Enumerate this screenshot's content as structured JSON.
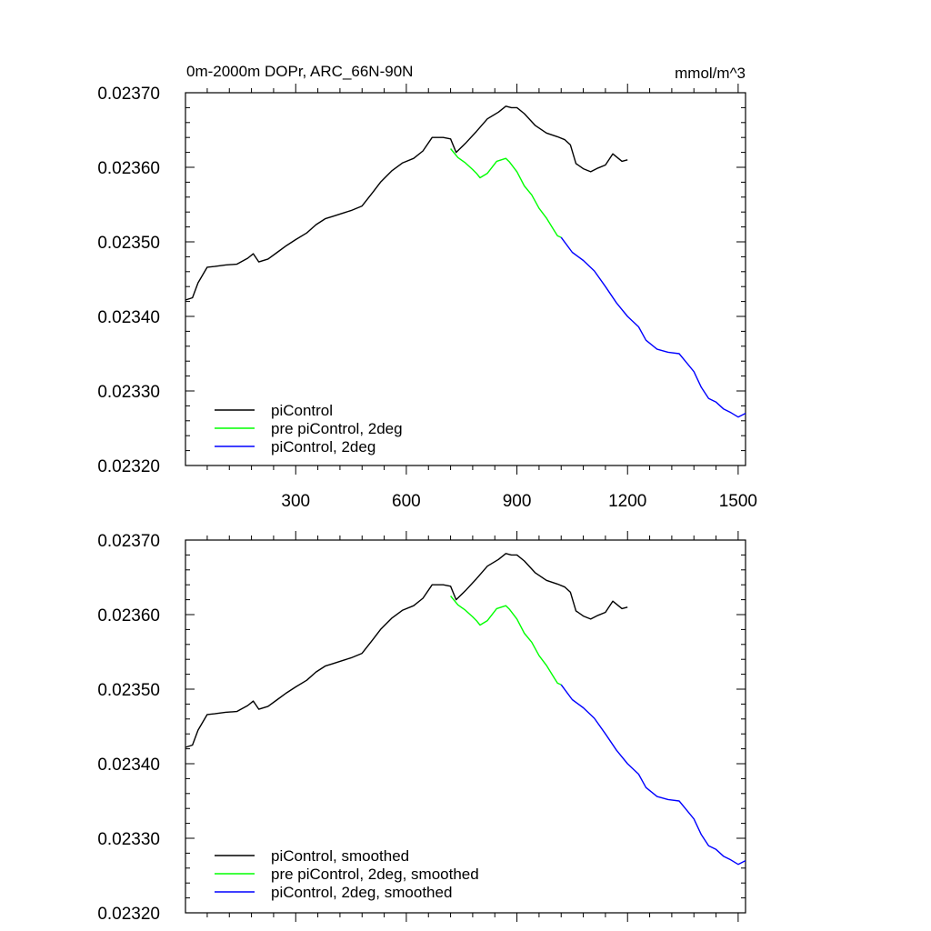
{
  "chart_data": [
    {
      "type": "line",
      "title_left": "0m-2000m DOPr, ARC_66N-90N",
      "title_right": "mmol/m^3",
      "xlim": [
        1,
        1520
      ],
      "ylim": [
        0.0232,
        0.0237
      ],
      "ytick_values": [
        0.0232,
        0.0233,
        0.0234,
        0.0235,
        0.0236,
        0.0237
      ],
      "ytick_labels": [
        "0.02320",
        "0.02330",
        "0.02340",
        "0.02350",
        "0.02360",
        "0.02370"
      ],
      "xtick_values": [
        300,
        600,
        900,
        1200,
        1500
      ],
      "xtick_labels": [
        "300",
        "600",
        "900",
        "1200",
        "1500"
      ],
      "legend_position": "bottom-left",
      "series": [
        {
          "name": "piControl",
          "color": "#000000",
          "x": [
            1,
            20,
            35,
            60,
            80,
            110,
            140,
            170,
            185,
            200,
            225,
            250,
            275,
            300,
            330,
            355,
            380,
            400,
            425,
            450,
            480,
            510,
            530,
            560,
            590,
            620,
            645,
            670,
            700,
            720,
            735,
            760,
            790,
            820,
            850,
            870,
            885,
            900,
            920,
            950,
            980,
            1010,
            1030,
            1045,
            1060,
            1080,
            1100,
            1120,
            1140,
            1160,
            1185,
            1200
          ],
          "y": [
            0.023422,
            0.023425,
            0.023445,
            0.023466,
            0.023467,
            0.023469,
            0.02347,
            0.023478,
            0.023484,
            0.023473,
            0.023477,
            0.023486,
            0.023495,
            0.023503,
            0.023512,
            0.023523,
            0.023531,
            0.023534,
            0.023538,
            0.023542,
            0.023548,
            0.023567,
            0.02358,
            0.023595,
            0.023606,
            0.023612,
            0.023622,
            0.02364,
            0.02364,
            0.023638,
            0.02362,
            0.023632,
            0.023648,
            0.023665,
            0.023674,
            0.023682,
            0.02368,
            0.02368,
            0.023672,
            0.023656,
            0.023646,
            0.023641,
            0.023637,
            0.02363,
            0.023605,
            0.023598,
            0.023594,
            0.023599,
            0.023603,
            0.023618,
            0.023608,
            0.02361
          ]
        },
        {
          "name": "pre piControl, 2deg",
          "color": "#00ff00",
          "x": [
            720,
            740,
            760,
            780,
            790,
            800,
            820,
            845,
            870,
            880,
            900,
            920,
            940,
            960,
            980,
            1000,
            1010,
            1020
          ],
          "y": [
            0.023625,
            0.023613,
            0.023606,
            0.023597,
            0.023592,
            0.023586,
            0.023592,
            0.023608,
            0.023612,
            0.023607,
            0.023594,
            0.023575,
            0.023563,
            0.023545,
            0.023532,
            0.023516,
            0.023508,
            0.023506
          ]
        },
        {
          "name": "piControl, 2deg",
          "color": "#0000ff",
          "x": [
            1020,
            1050,
            1080,
            1110,
            1140,
            1170,
            1200,
            1230,
            1250,
            1280,
            1310,
            1340,
            1360,
            1380,
            1400,
            1420,
            1440,
            1460,
            1480,
            1500,
            1520
          ],
          "y": [
            0.023506,
            0.023486,
            0.023475,
            0.023461,
            0.02344,
            0.023418,
            0.0234,
            0.023386,
            0.023368,
            0.023356,
            0.023352,
            0.02335,
            0.023338,
            0.023326,
            0.023305,
            0.02329,
            0.023285,
            0.023276,
            0.023271,
            0.023265,
            0.02327
          ]
        }
      ],
      "legend": [
        "piControl",
        "pre piControl, 2deg",
        "piControl, 2deg"
      ]
    },
    {
      "type": "line",
      "xlim": [
        1,
        1520
      ],
      "ylim": [
        0.0232,
        0.0237
      ],
      "ytick_values": [
        0.0232,
        0.0233,
        0.0234,
        0.0235,
        0.0236,
        0.0237
      ],
      "ytick_labels": [
        "0.02320",
        "0.02330",
        "0.02340",
        "0.02350",
        "0.02360",
        "0.02370"
      ],
      "xtick_values": [
        300,
        600,
        900,
        1200,
        1500
      ],
      "legend_position": "bottom-left",
      "series": [
        {
          "name": "piControl, smoothed",
          "color": "#000000",
          "x": [
            1,
            20,
            35,
            60,
            80,
            110,
            140,
            170,
            185,
            200,
            225,
            250,
            275,
            300,
            330,
            355,
            380,
            400,
            425,
            450,
            480,
            510,
            530,
            560,
            590,
            620,
            645,
            670,
            700,
            720,
            735,
            760,
            790,
            820,
            850,
            870,
            885,
            900,
            920,
            950,
            980,
            1010,
            1030,
            1045,
            1060,
            1080,
            1100,
            1120,
            1140,
            1160,
            1185,
            1200
          ],
          "y": [
            0.023422,
            0.023425,
            0.023445,
            0.023466,
            0.023467,
            0.023469,
            0.02347,
            0.023478,
            0.023484,
            0.023473,
            0.023477,
            0.023486,
            0.023495,
            0.023503,
            0.023512,
            0.023523,
            0.023531,
            0.023534,
            0.023538,
            0.023542,
            0.023548,
            0.023567,
            0.02358,
            0.023595,
            0.023606,
            0.023612,
            0.023622,
            0.02364,
            0.02364,
            0.023638,
            0.02362,
            0.023632,
            0.023648,
            0.023665,
            0.023674,
            0.023682,
            0.02368,
            0.02368,
            0.023672,
            0.023656,
            0.023646,
            0.023641,
            0.023637,
            0.02363,
            0.023605,
            0.023598,
            0.023594,
            0.023599,
            0.023603,
            0.023618,
            0.023608,
            0.02361
          ]
        },
        {
          "name": "pre piControl, 2deg, smoothed",
          "color": "#00ff00",
          "x": [
            720,
            740,
            760,
            780,
            790,
            800,
            820,
            845,
            870,
            880,
            900,
            920,
            940,
            960,
            980,
            1000,
            1010,
            1020
          ],
          "y": [
            0.023625,
            0.023613,
            0.023606,
            0.023597,
            0.023592,
            0.023586,
            0.023592,
            0.023608,
            0.023612,
            0.023607,
            0.023594,
            0.023575,
            0.023563,
            0.023545,
            0.023532,
            0.023516,
            0.023508,
            0.023506
          ]
        },
        {
          "name": "piControl, 2deg, smoothed",
          "color": "#0000ff",
          "x": [
            1020,
            1050,
            1080,
            1110,
            1140,
            1170,
            1200,
            1230,
            1250,
            1280,
            1310,
            1340,
            1360,
            1380,
            1400,
            1420,
            1440,
            1460,
            1480,
            1500,
            1520
          ],
          "y": [
            0.023506,
            0.023486,
            0.023475,
            0.023461,
            0.02344,
            0.023418,
            0.0234,
            0.023386,
            0.023368,
            0.023356,
            0.023352,
            0.02335,
            0.023338,
            0.023326,
            0.023305,
            0.02329,
            0.023285,
            0.023276,
            0.023271,
            0.023265,
            0.02327
          ]
        }
      ],
      "legend": [
        "piControl, smoothed",
        "pre piControl, 2deg, smoothed",
        "piControl, 2deg, smoothed"
      ]
    }
  ]
}
